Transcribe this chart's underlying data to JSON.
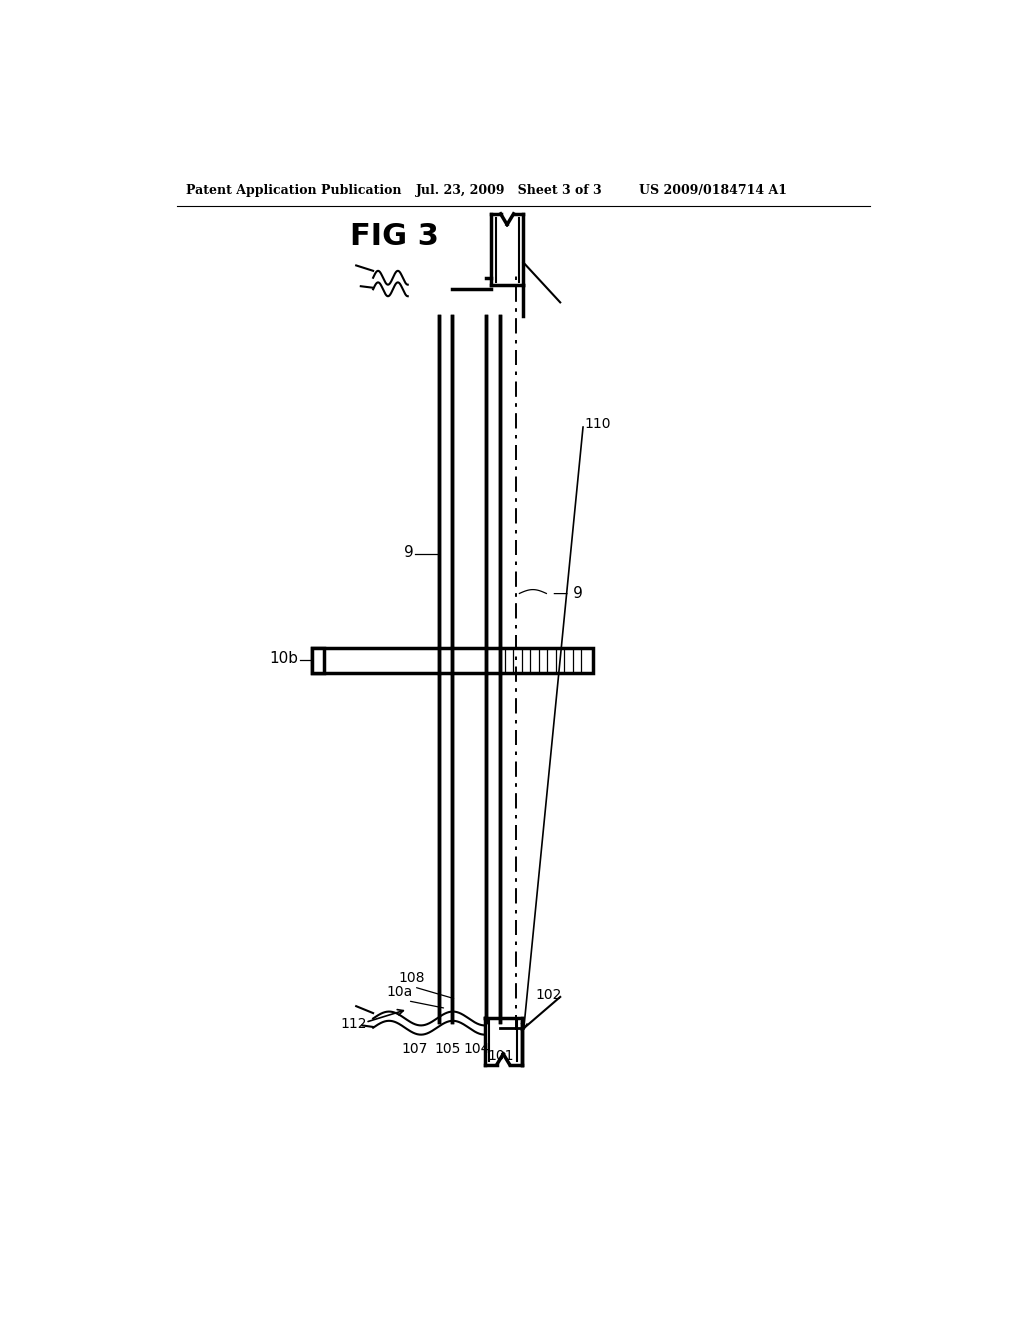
{
  "title": "FIG 3",
  "header_left": "Patent Application Publication",
  "header_mid": "Jul. 23, 2009   Sheet 3 of 3",
  "header_right": "US 2009/0184714 A1",
  "bg_color": "#ffffff",
  "line_color": "#000000",
  "fig_width": 10.24,
  "fig_height": 13.2,
  "dpi": 100
}
